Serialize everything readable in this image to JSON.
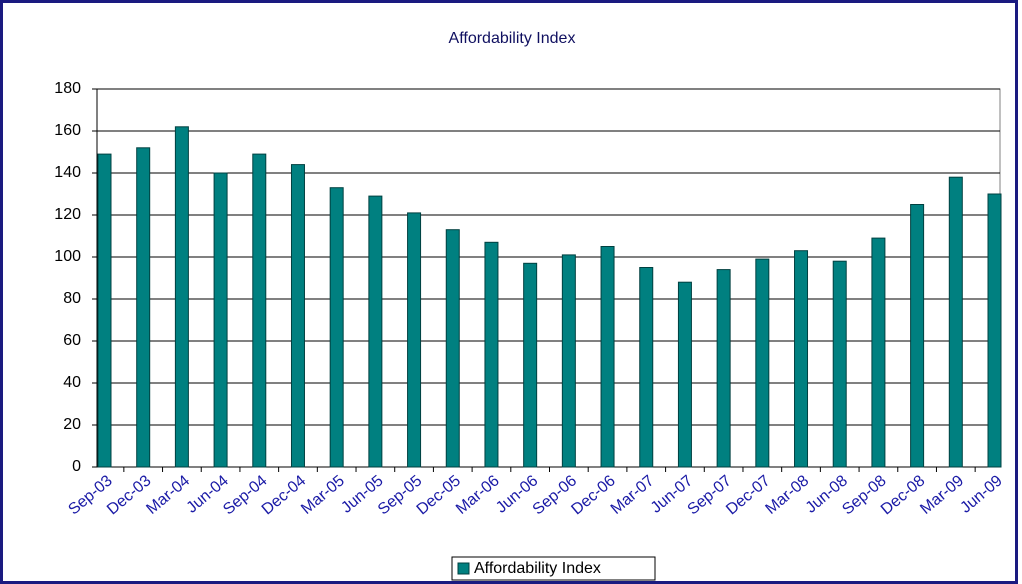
{
  "chart_data": {
    "type": "bar",
    "title": "Affordability Index",
    "categories": [
      "Sep-03",
      "Dec-03",
      "Mar-04",
      "Jun-04",
      "Sep-04",
      "Dec-04",
      "Mar-05",
      "Jun-05",
      "Sep-05",
      "Dec-05",
      "Mar-06",
      "Jun-06",
      "Sep-06",
      "Dec-06",
      "Mar-07",
      "Jun-07",
      "Sep-07",
      "Dec-07",
      "Mar-08",
      "Jun-08",
      "Sep-08",
      "Dec-08",
      "Mar-09",
      "Jun-09"
    ],
    "series": [
      {
        "name": "Affordability Index",
        "color": "#008080",
        "values": [
          149,
          152,
          162,
          140,
          149,
          144,
          133,
          129,
          121,
          113,
          107,
          97,
          101,
          105,
          95,
          88,
          94,
          99,
          103,
          98,
          109,
          125,
          138,
          130
        ]
      }
    ],
    "ylim": [
      0,
      180
    ],
    "yticks": [
      0,
      20,
      40,
      60,
      80,
      100,
      120,
      140,
      160,
      180
    ],
    "grid": true,
    "legend": "bottom"
  }
}
